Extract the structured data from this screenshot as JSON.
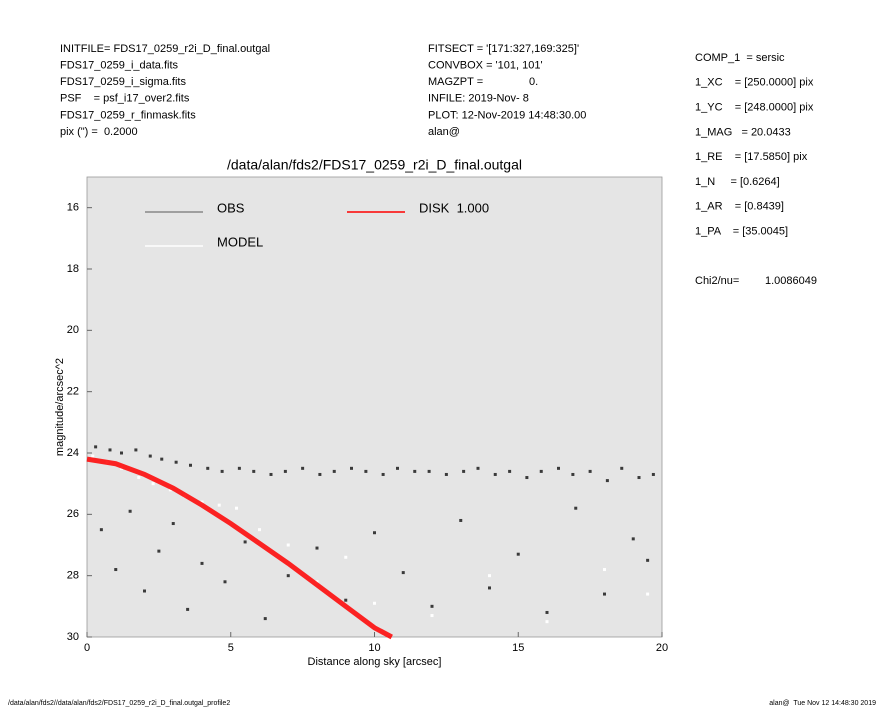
{
  "header": {
    "left_lines": [
      "INITFILE= FDS17_0259_r2i_D_final.outgal",
      "FDS17_0259_i_data.fits",
      "FDS17_0259_i_sigma.fits",
      "PSF    = psf_i17_over2.fits",
      "FDS17_0259_r_finmask.fits",
      "pix (\") =  0.2000"
    ],
    "middle_lines": [
      "FITSECT = '[171:327,169:325]'",
      "CONVBOX = '101, 101'",
      "MAGZPT =               0.",
      "INFILE: 2019-Nov- 8",
      "PLOT: 12-Nov-2019 14:48:30.00",
      "alan@"
    ],
    "right_lines": [
      "COMP_1  = sersic",
      "1_XC    = [250.0000] pix",
      "1_YC    = [248.0000] pix",
      "1_MAG   = 20.0433",
      "1_RE    = [17.5850] pix",
      "1_N     = [0.6264]",
      "1_AR    = [0.8439]",
      "1_PA    = [35.0045]"
    ],
    "chi2_label": "Chi2/nu=",
    "chi2_value": "1.0086049"
  },
  "footer": {
    "left": "/data/alan/fds2//data/alan/fds2/FDS17_0259_r2i_D_final.outgal_profile2",
    "right": "alan@  Tue Nov 12 14:48:30 2019"
  },
  "chart_data": {
    "type": "scatter",
    "title": "/data/alan/fds2/FDS17_0259_r2i_D_final.outgal",
    "xlabel": "Distance along sky [arcsec]",
    "ylabel": "magnitude/arcsec^2",
    "xlim": [
      0,
      20
    ],
    "xticks": [
      0,
      5,
      10,
      15,
      20
    ],
    "ylim": [
      15,
      30
    ],
    "yticks": [
      16,
      18,
      20,
      22,
      24,
      26,
      28,
      30
    ],
    "y_inverted": true,
    "series": [
      {
        "name": "OBS",
        "type": "scatter",
        "color": "#888888",
        "marker_color": "#3a3a3a",
        "x": [
          0.3,
          0.8,
          1.2,
          1.7,
          2.2,
          2.6,
          3.1,
          3.6,
          4.2,
          4.7,
          5.3,
          5.8,
          6.4,
          6.9,
          7.5,
          8.1,
          8.6,
          9.2,
          9.7,
          10.3,
          10.8,
          11.4,
          11.9,
          12.5,
          13.1,
          13.6,
          14.2,
          14.7,
          15.3,
          15.8,
          16.4,
          16.9,
          17.5,
          18.1,
          18.6,
          19.2,
          19.7,
          0.5,
          1.0,
          1.5,
          2.0,
          2.5,
          3.0,
          3.5,
          4.0,
          4.8,
          5.5,
          6.2,
          7.0,
          8.0,
          9.0,
          10.0,
          11.0,
          12.0,
          13.0,
          14.0,
          15.0,
          16.0,
          17.0,
          18.0,
          19.0,
          19.5
        ],
        "values": [
          23.8,
          23.9,
          24.0,
          23.9,
          24.1,
          24.2,
          24.3,
          24.4,
          24.5,
          24.6,
          24.5,
          24.6,
          24.7,
          24.6,
          24.5,
          24.7,
          24.6,
          24.5,
          24.6,
          24.7,
          24.5,
          24.6,
          24.6,
          24.7,
          24.6,
          24.5,
          24.7,
          24.6,
          24.8,
          24.6,
          24.5,
          24.7,
          24.6,
          24.9,
          24.5,
          24.8,
          24.7,
          26.5,
          27.8,
          25.9,
          28.5,
          27.2,
          26.3,
          29.1,
          27.6,
          28.2,
          26.9,
          29.4,
          28.0,
          27.1,
          28.8,
          26.6,
          27.9,
          29.0,
          26.2,
          28.4,
          27.3,
          29.2,
          25.8,
          28.6,
          26.8,
          27.5
        ]
      },
      {
        "name": "MODEL",
        "type": "scatter",
        "color": "#ffffff",
        "marker_color": "#ffffff",
        "x": [
          0.2,
          0.7,
          1.2,
          1.8,
          2.3,
          2.9,
          3.4,
          4.0,
          4.6,
          5.2,
          6.0,
          7.0,
          8.0,
          9.0,
          10.0,
          12.0,
          14.0,
          16.0,
          18.0,
          19.5
        ],
        "values": [
          24.1,
          24.3,
          24.5,
          24.8,
          25.0,
          25.2,
          25.4,
          25.6,
          25.7,
          25.8,
          26.5,
          27.0,
          28.2,
          27.4,
          28.9,
          29.3,
          28.0,
          29.5,
          27.8,
          28.6
        ]
      },
      {
        "name": "DISK  1.000",
        "type": "line",
        "color": "#ff0000",
        "x": [
          0,
          1,
          2,
          3,
          4,
          5,
          6,
          7,
          8,
          9,
          10,
          10.6
        ],
        "values": [
          24.2,
          24.35,
          24.7,
          25.15,
          25.7,
          26.3,
          26.95,
          27.6,
          28.3,
          29.0,
          29.7,
          30.0
        ]
      }
    ]
  }
}
